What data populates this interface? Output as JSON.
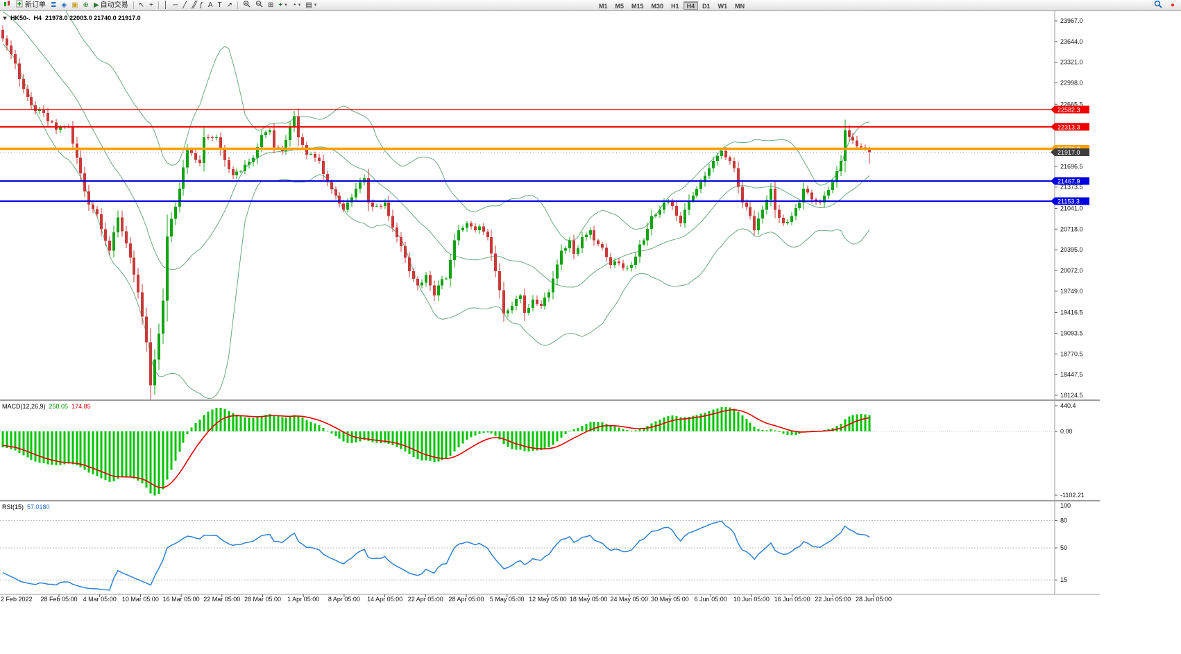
{
  "toolbar": {
    "new_order_label": "新订单",
    "autotrading_label": "自动交易",
    "text_tool_label": "A",
    "label_tool_label": "T",
    "fibo_tool_label": "ƒ",
    "timeframes": [
      "M1",
      "M5",
      "M15",
      "M30",
      "H1",
      "H4",
      "D1",
      "W1",
      "MN"
    ],
    "active_timeframe": "H4"
  },
  "chart_data": {
    "type": "candlestick",
    "symbol": "HK50-.",
    "timeframe": "H4",
    "ohlc_line": "21978.0 22003.0 21740.0 21917.0",
    "last_bar": [
      21978.0,
      22003.0,
      21740.0,
      21917.0
    ],
    "bar_count": 212,
    "price_axis": {
      "max": 23967.0,
      "min": 18124.5,
      "ticks": [
        "23967.0",
        "23644.0",
        "23321.0",
        "22998.0",
        "22665.5",
        "21696.5",
        "21373.5",
        "21041.0",
        "20718.0",
        "20395.0",
        "20072.0",
        "19749.0",
        "19416.5",
        "19093.5",
        "18770.5",
        "18447.5",
        "18124.5"
      ]
    },
    "time_axis": [
      "2 Feb 2022",
      "28 Feb 05:00",
      "4 Mar 05:00",
      "10 Mar 05:00",
      "16 Mar 05:00",
      "22 Mar 05:00",
      "28 Mar 05:00",
      "1 Apr 05:00",
      "8 Apr 05:00",
      "14 Apr 05:00",
      "22 Apr 05:00",
      "28 Apr 05:00",
      "5 May 05:00",
      "12 May 05:00",
      "18 May 05:00",
      "24 May 05:00",
      "30 May 05:00",
      "6 Jun 05:00",
      "10 Jun 05:00",
      "16 Jun 05:00",
      "22 Jun 05:00",
      "28 Jun 05:00"
    ],
    "horizontal_lines": [
      {
        "price": 22582.3,
        "label": "22582.3",
        "color": "#ee0000",
        "width": 1.4
      },
      {
        "price": 22313.3,
        "label": "22313.3",
        "color": "#ee0000",
        "width": 2
      },
      {
        "price": 21970.8,
        "label": "21970.8",
        "color": "#ffa000",
        "width": 3.5
      },
      {
        "price": 21467.9,
        "label": "21467.9",
        "color": "#0000e0",
        "width": 2
      },
      {
        "price": 21153.3,
        "label": "21153.3",
        "color": "#0000e0",
        "width": 2
      }
    ],
    "current_price": {
      "value": 21917.0,
      "label": "21917.0",
      "tag_color": "#3d3d3d"
    },
    "colors": {
      "up": "#12a312",
      "down": "#c93a3a",
      "background": "#ffffff"
    },
    "bollinger": {
      "period": 20,
      "deviation": 2,
      "color": "#69a97f"
    },
    "macd": {
      "name": "MACD(12,26,9)",
      "value_main": "258.05",
      "value_signal": "174.85",
      "axis": [
        "440.4",
        "0.00",
        "-1102.21"
      ],
      "histogram_color": "#00c400",
      "signal_color": "#e60000"
    },
    "rsi": {
      "name": "RSI(15)",
      "value": "57.0180",
      "period": 15,
      "levels": [
        80,
        50,
        15
      ],
      "axis_top": "100",
      "color": "#2f80d0"
    },
    "close_path": [
      [
        0,
        23690
      ],
      [
        2,
        23450
      ],
      [
        3,
        23300
      ],
      [
        5,
        22900
      ],
      [
        8,
        22560
      ],
      [
        10,
        22530
      ],
      [
        13,
        22270
      ],
      [
        16,
        22310
      ],
      [
        18,
        21830
      ],
      [
        21,
        21100
      ],
      [
        23,
        20950
      ],
      [
        26,
        20380
      ],
      [
        28,
        20900
      ],
      [
        31,
        20270
      ],
      [
        33,
        19730
      ],
      [
        35,
        18950
      ],
      [
        36,
        18280
      ],
      [
        38,
        19090
      ],
      [
        39,
        19600
      ],
      [
        40,
        20600
      ],
      [
        43,
        21350
      ],
      [
        45,
        21950
      ],
      [
        48,
        21750
      ],
      [
        49,
        22150
      ],
      [
        52,
        22150
      ],
      [
        54,
        21790
      ],
      [
        56,
        21560
      ],
      [
        59,
        21720
      ],
      [
        61,
        21830
      ],
      [
        63,
        22180
      ],
      [
        65,
        22260
      ],
      [
        66,
        21990
      ],
      [
        68,
        21940
      ],
      [
        71,
        22480
      ],
      [
        72,
        22150
      ],
      [
        74,
        21880
      ],
      [
        76,
        21830
      ],
      [
        77,
        21780
      ],
      [
        79,
        21450
      ],
      [
        81,
        21240
      ],
      [
        83,
        21020
      ],
      [
        84,
        21130
      ],
      [
        86,
        21350
      ],
      [
        88,
        21510
      ],
      [
        89,
        21130
      ],
      [
        91,
        21080
      ],
      [
        93,
        21130
      ],
      [
        94,
        20920
      ],
      [
        96,
        20590
      ],
      [
        98,
        20270
      ],
      [
        99,
        20060
      ],
      [
        101,
        19840
      ],
      [
        103,
        20000
      ],
      [
        105,
        19680
      ],
      [
        106,
        19840
      ],
      [
        108,
        19950
      ],
      [
        110,
        20540
      ],
      [
        111,
        20700
      ],
      [
        113,
        20810
      ],
      [
        115,
        20700
      ],
      [
        116,
        20760
      ],
      [
        118,
        20590
      ],
      [
        120,
        20060
      ],
      [
        122,
        19400
      ],
      [
        124,
        19520
      ],
      [
        126,
        19680
      ],
      [
        127,
        19410
      ],
      [
        129,
        19620
      ],
      [
        131,
        19520
      ],
      [
        133,
        19730
      ],
      [
        134,
        19950
      ],
      [
        136,
        20380
      ],
      [
        138,
        20540
      ],
      [
        139,
        20330
      ],
      [
        141,
        20590
      ],
      [
        143,
        20700
      ],
      [
        144,
        20540
      ],
      [
        146,
        20430
      ],
      [
        148,
        20160
      ],
      [
        149,
        20210
      ],
      [
        151,
        20110
      ],
      [
        153,
        20160
      ],
      [
        155,
        20480
      ],
      [
        156,
        20540
      ],
      [
        158,
        20920
      ],
      [
        160,
        21020
      ],
      [
        161,
        21130
      ],
      [
        163,
        21080
      ],
      [
        165,
        20810
      ],
      [
        166,
        21020
      ],
      [
        168,
        21240
      ],
      [
        170,
        21450
      ],
      [
        172,
        21670
      ],
      [
        173,
        21780
      ],
      [
        175,
        21940
      ],
      [
        177,
        21780
      ],
      [
        178,
        21670
      ],
      [
        180,
        21130
      ],
      [
        182,
        20920
      ],
      [
        183,
        20700
      ],
      [
        185,
        21020
      ],
      [
        187,
        21350
      ],
      [
        188,
        21020
      ],
      [
        190,
        20810
      ],
      [
        192,
        20920
      ],
      [
        194,
        21130
      ],
      [
        195,
        21350
      ],
      [
        197,
        21180
      ],
      [
        199,
        21130
      ],
      [
        200,
        21240
      ],
      [
        202,
        21450
      ],
      [
        204,
        21780
      ],
      [
        205,
        22260
      ],
      [
        207,
        22100
      ],
      [
        209,
        21990
      ],
      [
        210,
        21978
      ],
      [
        211,
        21917
      ]
    ]
  }
}
